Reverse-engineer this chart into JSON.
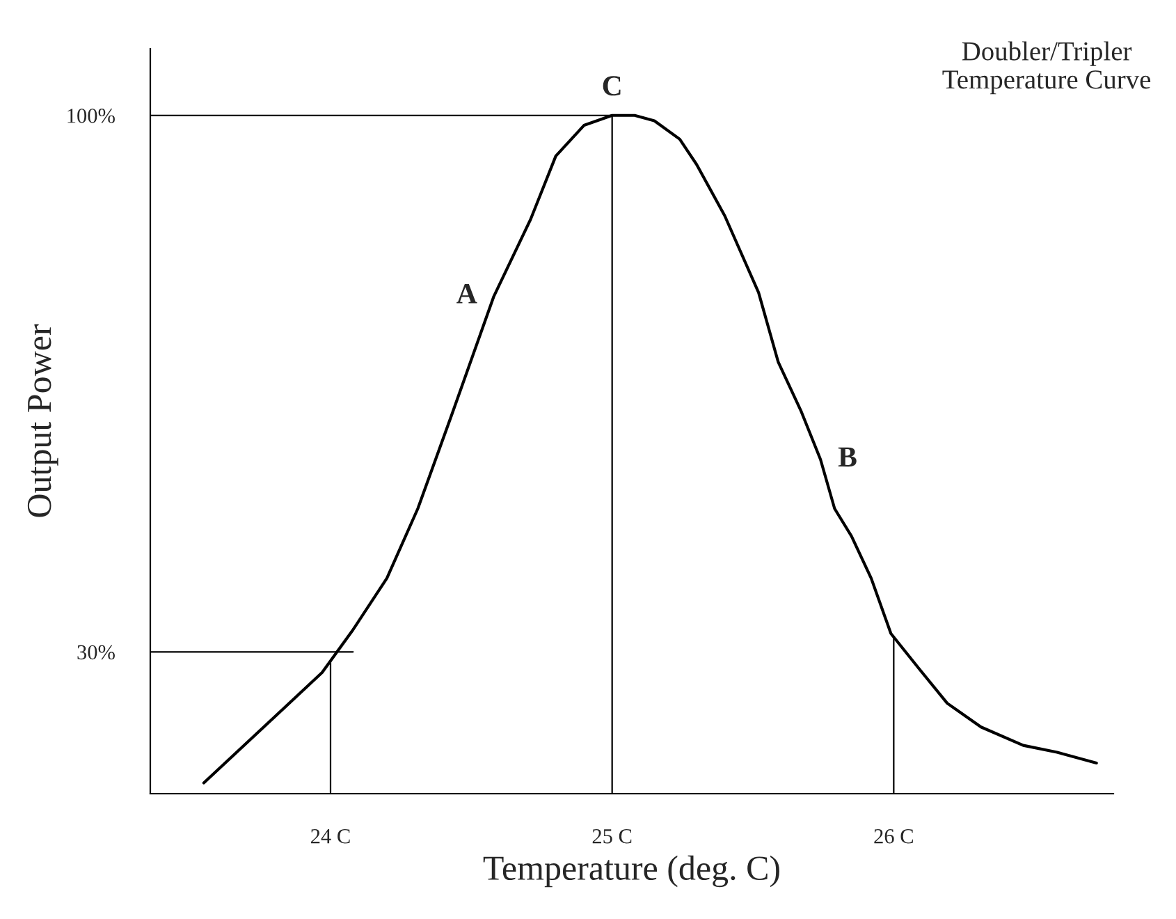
{
  "chart_data": {
    "type": "line",
    "title": "Doubler/Tripler\nTemperature Curve",
    "xlabel": "Temperature (deg. C)",
    "ylabel": "Output Power",
    "x": [
      23.55,
      23.97,
      24.08,
      24.2,
      24.31,
      24.43,
      24.58,
      24.71,
      24.8,
      24.9,
      25.0,
      25.08,
      25.15,
      25.24,
      25.3,
      25.4,
      25.52,
      25.59,
      25.67,
      25.74,
      25.79,
      25.85,
      25.92,
      25.99,
      26.09,
      26.19,
      26.31,
      26.46,
      26.58,
      26.72
    ],
    "series": [
      {
        "color": "#000000",
        "values": [
          12.9,
          27.3,
          32.9,
          39.6,
          48.7,
          60.9,
          76.4,
          86.4,
          94.7,
          98.7,
          100,
          100,
          99.3,
          96.9,
          93.6,
          86.9,
          76.9,
          67.8,
          61.5,
          55.1,
          48.7,
          45.1,
          39.6,
          32.4,
          27.8,
          23.3,
          20.2,
          17.8,
          16.9,
          15.5
        ]
      }
    ],
    "xlim": [
      23.36,
      26.78
    ],
    "ylim": [
      11.5,
      108.7
    ],
    "xticks": [
      {
        "value": 24,
        "label": "24 C"
      },
      {
        "value": 25,
        "label": "25 C"
      },
      {
        "value": 26,
        "label": "26 C"
      }
    ],
    "yticks": [
      {
        "value": 30,
        "label": "30%"
      },
      {
        "value": 100,
        "label": "100%"
      }
    ],
    "ref_lines": [
      {
        "axis": "y",
        "value": 100
      },
      {
        "axis": "y",
        "value": 30
      },
      {
        "axis": "x",
        "value": 24
      },
      {
        "axis": "x",
        "value": 25
      },
      {
        "axis": "x",
        "value": 26
      }
    ],
    "annotations": [
      {
        "text": "A",
        "x": 24.58,
        "y": 76.4
      },
      {
        "text": "B",
        "x": 25.74,
        "y": 55.1
      },
      {
        "text": "C",
        "x": 25.0,
        "y": 100
      }
    ],
    "grid": false,
    "legend": false,
    "marker": "none",
    "line_style": "solid"
  }
}
